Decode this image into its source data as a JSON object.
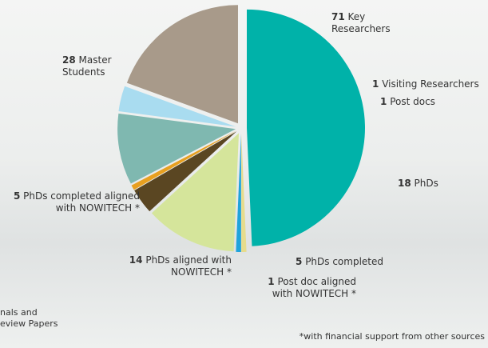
{
  "chart_data": {
    "type": "pie",
    "categories": [
      "Key Researchers",
      "Visiting Researchers",
      "Post docs",
      "PhDs",
      "PhDs completed",
      "Post doc aligned with NOWITECH *",
      "PhDs aligned with NOWITECH *",
      "PhDs completed aligned with NOWITECH *",
      "Master Students"
    ],
    "values": [
      71,
      1,
      1,
      18,
      5,
      1,
      14,
      5,
      28
    ],
    "colors": [
      "#00b2a9",
      "#e6dc8c",
      "#1fa3dc",
      "#d5e59b",
      "#5a4622",
      "#e8a020",
      "#7fb8b0",
      "#a9dcf0",
      "#a89a8a"
    ],
    "footnote": "*with financial support from other sources",
    "cut_text": [
      "nals and",
      "eview Papers"
    ]
  }
}
